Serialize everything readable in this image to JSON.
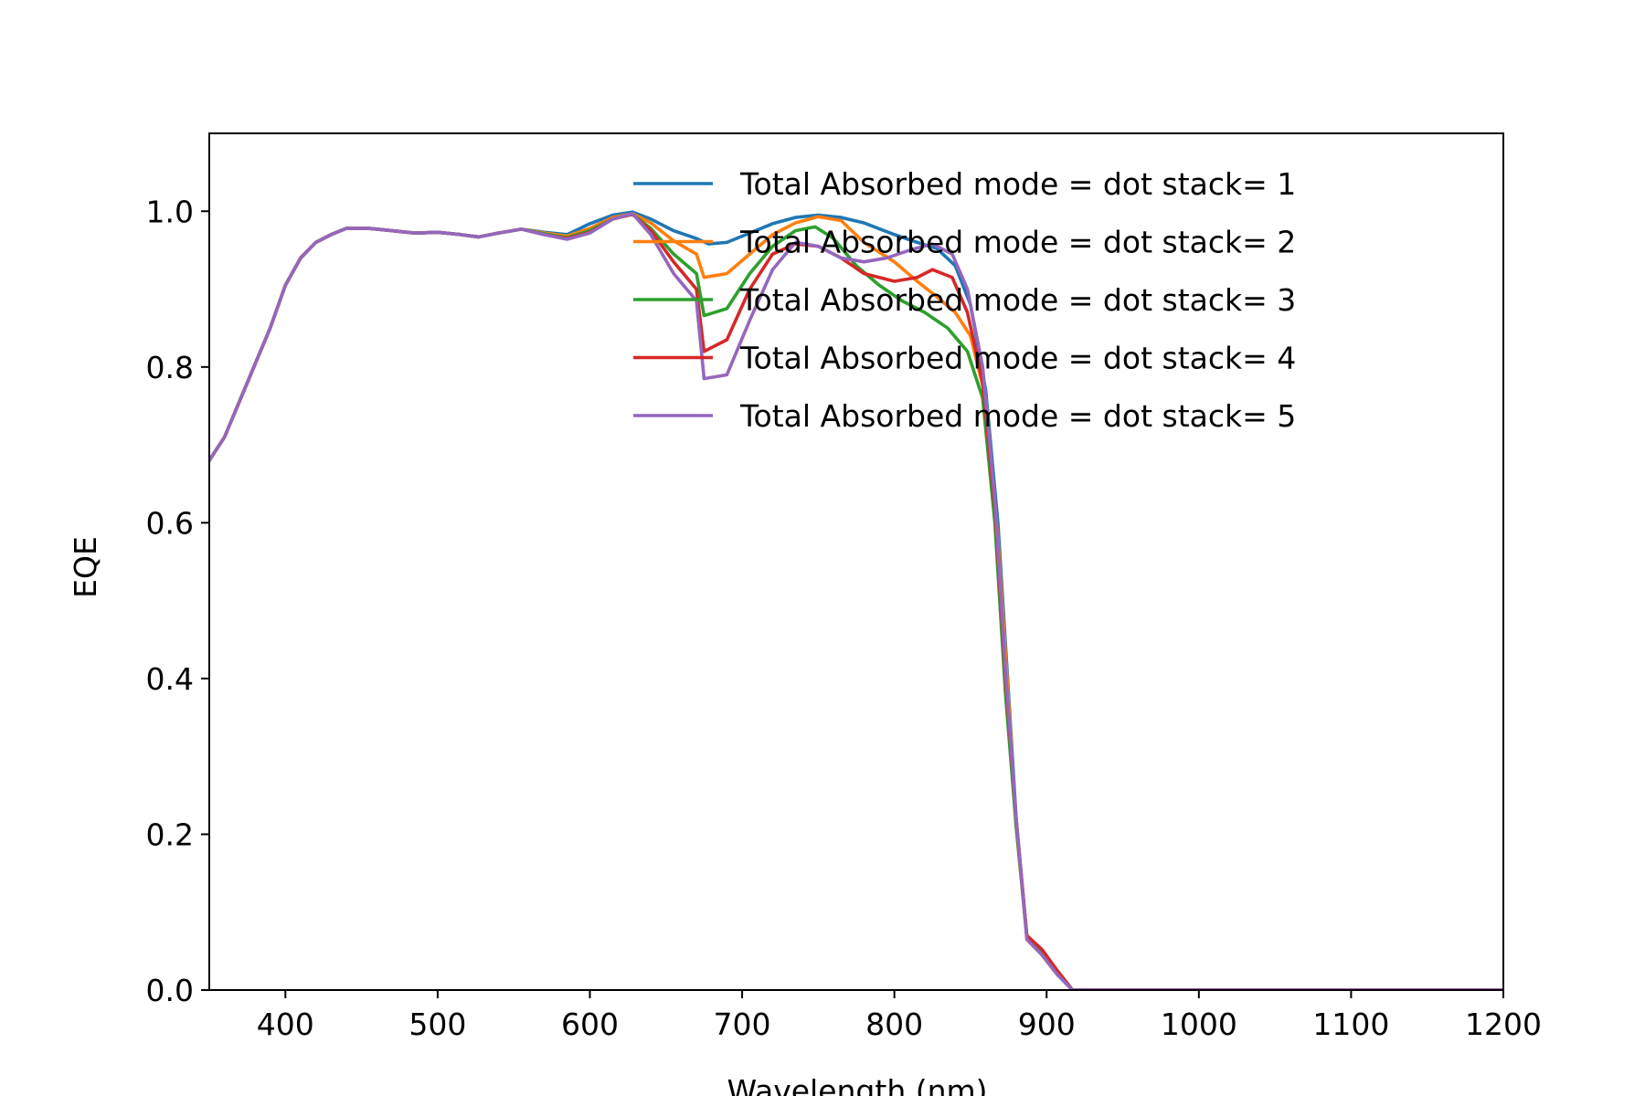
{
  "chart_data": {
    "type": "line",
    "title": "",
    "xlabel": "Wavelength (nm)",
    "ylabel": "EQE",
    "xlim": [
      350,
      1200
    ],
    "ylim": [
      0.0,
      1.1
    ],
    "grid": false,
    "legend_position": "top-right",
    "x_ticks": [
      400,
      500,
      600,
      700,
      800,
      900,
      1000,
      1100,
      1200
    ],
    "x_tick_labels": [
      "400",
      "500",
      "600",
      "700",
      "800",
      "900",
      "1000",
      "1100",
      "1200"
    ],
    "y_ticks": [
      0.0,
      0.2,
      0.4,
      0.6,
      0.8,
      1.0
    ],
    "y_tick_labels": [
      "0.0",
      "0.2",
      "0.4",
      "0.6",
      "0.8",
      "1.0"
    ],
    "series": [
      {
        "name": "Total Absorbed mode = dot stack= 1",
        "color": "#1f77b4",
        "points": [
          [
            350,
            0.68
          ],
          [
            360,
            0.71
          ],
          [
            375,
            0.78
          ],
          [
            390,
            0.85
          ],
          [
            400,
            0.905
          ],
          [
            410,
            0.94
          ],
          [
            420,
            0.96
          ],
          [
            430,
            0.97
          ],
          [
            440,
            0.978
          ],
          [
            455,
            0.978
          ],
          [
            470,
            0.975
          ],
          [
            485,
            0.972
          ],
          [
            500,
            0.973
          ],
          [
            515,
            0.97
          ],
          [
            527,
            0.967
          ],
          [
            540,
            0.972
          ],
          [
            555,
            0.977
          ],
          [
            570,
            0.973
          ],
          [
            585,
            0.97
          ],
          [
            600,
            0.984
          ],
          [
            615,
            0.995
          ],
          [
            628,
            0.999
          ],
          [
            640,
            0.99
          ],
          [
            655,
            0.975
          ],
          [
            670,
            0.965
          ],
          [
            678,
            0.958
          ],
          [
            690,
            0.96
          ],
          [
            705,
            0.972
          ],
          [
            720,
            0.984
          ],
          [
            735,
            0.992
          ],
          [
            750,
            0.995
          ],
          [
            765,
            0.992
          ],
          [
            780,
            0.985
          ],
          [
            800,
            0.97
          ],
          [
            815,
            0.96
          ],
          [
            828,
            0.952
          ],
          [
            840,
            0.93
          ],
          [
            850,
            0.88
          ],
          [
            860,
            0.77
          ],
          [
            868,
            0.6
          ],
          [
            875,
            0.38
          ],
          [
            880,
            0.22
          ],
          [
            887,
            0.068
          ],
          [
            897,
            0.045
          ],
          [
            907,
            0.02
          ],
          [
            917,
            0.0
          ],
          [
            1000,
            0.0
          ],
          [
            1100,
            0.0
          ],
          [
            1200,
            0.0
          ]
        ]
      },
      {
        "name": "Total Absorbed mode = dot stack= 2",
        "color": "#ff7f0e",
        "points": [
          [
            350,
            0.68
          ],
          [
            360,
            0.71
          ],
          [
            375,
            0.78
          ],
          [
            390,
            0.85
          ],
          [
            400,
            0.905
          ],
          [
            410,
            0.94
          ],
          [
            420,
            0.96
          ],
          [
            430,
            0.97
          ],
          [
            440,
            0.978
          ],
          [
            455,
            0.978
          ],
          [
            470,
            0.975
          ],
          [
            485,
            0.972
          ],
          [
            500,
            0.973
          ],
          [
            515,
            0.97
          ],
          [
            527,
            0.967
          ],
          [
            540,
            0.972
          ],
          [
            555,
            0.977
          ],
          [
            570,
            0.972
          ],
          [
            585,
            0.968
          ],
          [
            600,
            0.978
          ],
          [
            615,
            0.992
          ],
          [
            628,
            0.997
          ],
          [
            640,
            0.985
          ],
          [
            655,
            0.962
          ],
          [
            670,
            0.945
          ],
          [
            675,
            0.915
          ],
          [
            690,
            0.92
          ],
          [
            705,
            0.945
          ],
          [
            720,
            0.97
          ],
          [
            735,
            0.985
          ],
          [
            750,
            0.993
          ],
          [
            765,
            0.988
          ],
          [
            780,
            0.96
          ],
          [
            800,
            0.935
          ],
          [
            815,
            0.91
          ],
          [
            828,
            0.89
          ],
          [
            840,
            0.87
          ],
          [
            850,
            0.84
          ],
          [
            860,
            0.76
          ],
          [
            868,
            0.58
          ],
          [
            875,
            0.37
          ],
          [
            880,
            0.21
          ],
          [
            887,
            0.068
          ],
          [
            897,
            0.045
          ],
          [
            907,
            0.02
          ],
          [
            917,
            0.0
          ],
          [
            1000,
            0.0
          ],
          [
            1100,
            0.0
          ],
          [
            1200,
            0.0
          ]
        ]
      },
      {
        "name": "Total Absorbed mode = dot stack= 3",
        "color": "#2ca02c",
        "points": [
          [
            350,
            0.68
          ],
          [
            360,
            0.71
          ],
          [
            375,
            0.78
          ],
          [
            390,
            0.85
          ],
          [
            400,
            0.905
          ],
          [
            410,
            0.94
          ],
          [
            420,
            0.96
          ],
          [
            430,
            0.97
          ],
          [
            440,
            0.978
          ],
          [
            455,
            0.978
          ],
          [
            470,
            0.975
          ],
          [
            485,
            0.972
          ],
          [
            500,
            0.973
          ],
          [
            515,
            0.97
          ],
          [
            527,
            0.967
          ],
          [
            540,
            0.972
          ],
          [
            555,
            0.977
          ],
          [
            570,
            0.971
          ],
          [
            585,
            0.966
          ],
          [
            600,
            0.975
          ],
          [
            615,
            0.99
          ],
          [
            628,
            0.996
          ],
          [
            640,
            0.978
          ],
          [
            655,
            0.945
          ],
          [
            670,
            0.92
          ],
          [
            675,
            0.866
          ],
          [
            690,
            0.875
          ],
          [
            705,
            0.92
          ],
          [
            720,
            0.955
          ],
          [
            735,
            0.975
          ],
          [
            748,
            0.98
          ],
          [
            760,
            0.965
          ],
          [
            775,
            0.93
          ],
          [
            790,
            0.905
          ],
          [
            805,
            0.885
          ],
          [
            820,
            0.87
          ],
          [
            835,
            0.85
          ],
          [
            848,
            0.82
          ],
          [
            858,
            0.76
          ],
          [
            866,
            0.6
          ],
          [
            873,
            0.38
          ],
          [
            880,
            0.21
          ],
          [
            887,
            0.07
          ],
          [
            897,
            0.05
          ],
          [
            907,
            0.025
          ],
          [
            917,
            0.0
          ],
          [
            1000,
            0.0
          ],
          [
            1100,
            0.0
          ],
          [
            1200,
            0.0
          ]
        ]
      },
      {
        "name": "Total Absorbed mode = dot stack= 4",
        "color": "#d62728",
        "points": [
          [
            350,
            0.68
          ],
          [
            360,
            0.71
          ],
          [
            375,
            0.78
          ],
          [
            390,
            0.85
          ],
          [
            400,
            0.905
          ],
          [
            410,
            0.94
          ],
          [
            420,
            0.96
          ],
          [
            430,
            0.97
          ],
          [
            440,
            0.978
          ],
          [
            455,
            0.978
          ],
          [
            470,
            0.975
          ],
          [
            485,
            0.972
          ],
          [
            500,
            0.973
          ],
          [
            515,
            0.97
          ],
          [
            527,
            0.967
          ],
          [
            540,
            0.972
          ],
          [
            555,
            0.977
          ],
          [
            570,
            0.97
          ],
          [
            585,
            0.965
          ],
          [
            600,
            0.973
          ],
          [
            615,
            0.99
          ],
          [
            628,
            0.996
          ],
          [
            640,
            0.975
          ],
          [
            655,
            0.935
          ],
          [
            670,
            0.9
          ],
          [
            675,
            0.82
          ],
          [
            690,
            0.835
          ],
          [
            705,
            0.9
          ],
          [
            720,
            0.945
          ],
          [
            735,
            0.958
          ],
          [
            750,
            0.955
          ],
          [
            765,
            0.94
          ],
          [
            780,
            0.92
          ],
          [
            800,
            0.91
          ],
          [
            815,
            0.915
          ],
          [
            825,
            0.925
          ],
          [
            838,
            0.915
          ],
          [
            848,
            0.87
          ],
          [
            858,
            0.78
          ],
          [
            866,
            0.62
          ],
          [
            873,
            0.4
          ],
          [
            880,
            0.22
          ],
          [
            887,
            0.07
          ],
          [
            897,
            0.052
          ],
          [
            907,
            0.025
          ],
          [
            917,
            0.0
          ],
          [
            1000,
            0.0
          ],
          [
            1100,
            0.0
          ],
          [
            1200,
            0.0
          ]
        ]
      },
      {
        "name": "Total Absorbed mode = dot stack= 5",
        "color": "#9467bd",
        "points": [
          [
            350,
            0.68
          ],
          [
            360,
            0.71
          ],
          [
            375,
            0.78
          ],
          [
            390,
            0.85
          ],
          [
            400,
            0.905
          ],
          [
            410,
            0.94
          ],
          [
            420,
            0.96
          ],
          [
            430,
            0.97
          ],
          [
            440,
            0.978
          ],
          [
            455,
            0.978
          ],
          [
            470,
            0.975
          ],
          [
            485,
            0.972
          ],
          [
            500,
            0.973
          ],
          [
            515,
            0.97
          ],
          [
            527,
            0.967
          ],
          [
            540,
            0.972
          ],
          [
            555,
            0.977
          ],
          [
            570,
            0.97
          ],
          [
            585,
            0.964
          ],
          [
            600,
            0.972
          ],
          [
            615,
            0.99
          ],
          [
            628,
            0.997
          ],
          [
            640,
            0.97
          ],
          [
            655,
            0.92
          ],
          [
            670,
            0.885
          ],
          [
            675,
            0.785
          ],
          [
            690,
            0.79
          ],
          [
            705,
            0.86
          ],
          [
            720,
            0.925
          ],
          [
            735,
            0.96
          ],
          [
            750,
            0.955
          ],
          [
            765,
            0.94
          ],
          [
            780,
            0.935
          ],
          [
            795,
            0.94
          ],
          [
            810,
            0.95
          ],
          [
            825,
            0.958
          ],
          [
            838,
            0.945
          ],
          [
            848,
            0.9
          ],
          [
            858,
            0.8
          ],
          [
            866,
            0.63
          ],
          [
            873,
            0.41
          ],
          [
            880,
            0.22
          ],
          [
            887,
            0.065
          ],
          [
            897,
            0.045
          ],
          [
            907,
            0.02
          ],
          [
            917,
            0.0
          ],
          [
            1000,
            0.0
          ],
          [
            1100,
            0.0
          ],
          [
            1200,
            0.0
          ]
        ]
      }
    ]
  }
}
